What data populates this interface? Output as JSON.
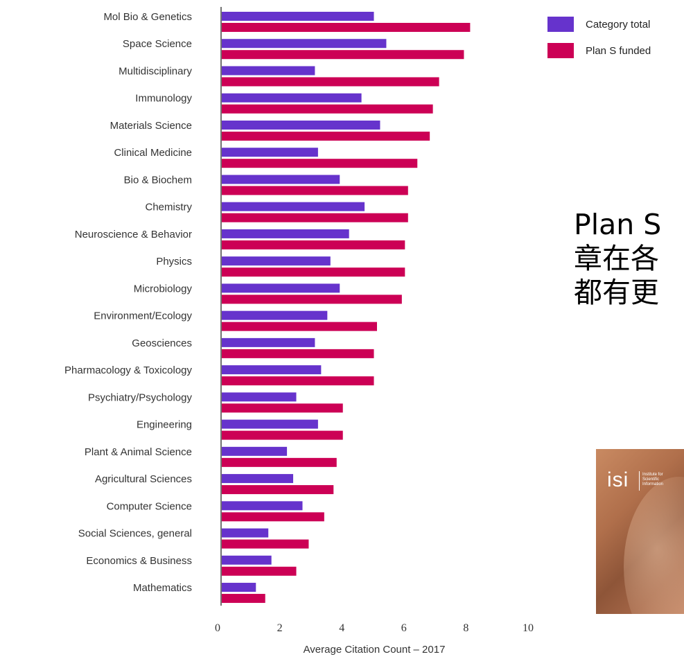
{
  "chart_data": {
    "type": "bar",
    "orientation": "horizontal",
    "title": "",
    "xlabel": "Average Citation Count – 2017",
    "ylabel": "",
    "xlim": [
      0,
      10
    ],
    "xticks": [
      "0",
      "2",
      "4",
      "6",
      "8",
      "10"
    ],
    "grid": false,
    "legend_position": "top-right",
    "categories": [
      "Mol Bio & Genetics",
      "Space Science",
      "Multidisciplinary",
      "Immunology",
      "Materials Science",
      "Clinical Medicine",
      "Bio & Biochem",
      "Chemistry",
      "Neuroscience & Behavior",
      "Physics",
      "Microbiology",
      "Environment/Ecology",
      "Geosciences",
      "Pharmacology & Toxicology",
      "Psychiatry/Psychology",
      "Engineering",
      "Plant & Animal Science",
      "Agricultural Sciences",
      "Computer Science",
      "Social Sciences, general",
      "Economics & Business",
      "Mathematics"
    ],
    "series": [
      {
        "name": "Category total",
        "color": "#6633cc",
        "values": [
          4.9,
          5.3,
          3.0,
          4.5,
          5.1,
          3.1,
          3.8,
          4.6,
          4.1,
          3.5,
          3.8,
          3.4,
          3.0,
          3.2,
          2.4,
          3.1,
          2.1,
          2.3,
          2.6,
          1.5,
          1.6,
          1.1
        ]
      },
      {
        "name": "Plan S funded",
        "color": "#cc0055",
        "values": [
          8.0,
          7.8,
          7.0,
          6.8,
          6.7,
          6.3,
          6.0,
          6.0,
          5.9,
          5.9,
          5.8,
          5.0,
          4.9,
          4.9,
          3.9,
          3.9,
          3.7,
          3.6,
          3.3,
          2.8,
          2.4,
          1.4
        ]
      }
    ]
  },
  "headline": {
    "lines": [
      "Plan S",
      "章在各",
      "都有更"
    ]
  },
  "report_cover": {
    "logo": "isi",
    "tagline": "Institute for\nScientific\nInformation"
  }
}
